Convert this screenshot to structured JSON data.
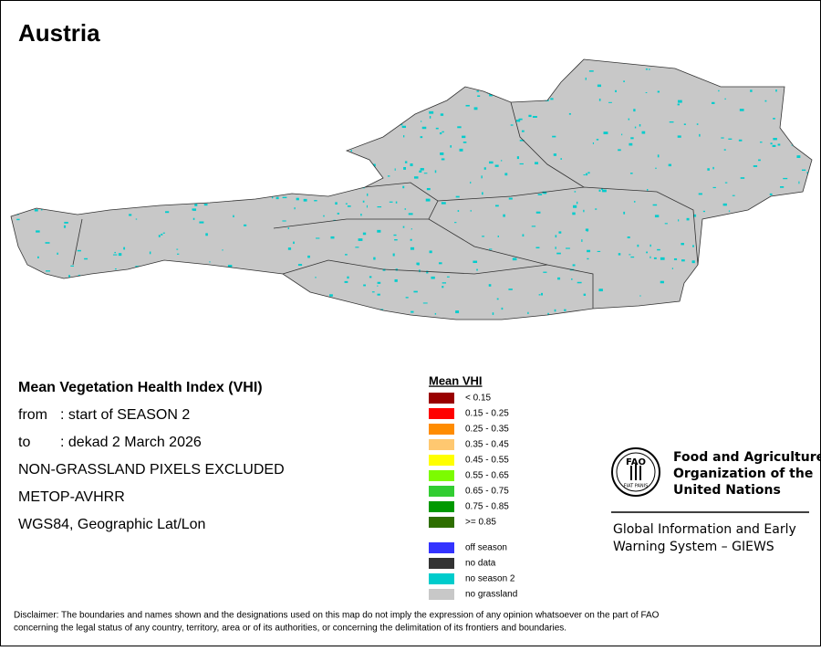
{
  "title": "Austria",
  "info": {
    "heading": "Mean Vegetation Health Index (VHI)",
    "rows": [
      {
        "label": "from",
        "value": ": start of SEASON 2"
      },
      {
        "label": "to",
        "value": ": dekad 2 March 2026"
      }
    ],
    "lines": [
      "NON-GRASSLAND PIXELS EXCLUDED",
      "METOP-AVHRR",
      "WGS84, Geographic Lat/Lon"
    ]
  },
  "legend": {
    "title": "Mean VHI",
    "items": [
      {
        "label": "< 0.15",
        "color": "#990000"
      },
      {
        "label": "0.15 - 0.25",
        "color": "#ff0000"
      },
      {
        "label": "0.25 - 0.35",
        "color": "#ff8c00"
      },
      {
        "label": "0.35 - 0.45",
        "color": "#ffc870"
      },
      {
        "label": "0.45 - 0.55",
        "color": "#ffff00"
      },
      {
        "label": "0.55 - 0.65",
        "color": "#7cfc00"
      },
      {
        "label": "0.65 - 0.75",
        "color": "#32cd32"
      },
      {
        "label": "0.75 - 0.85",
        "color": "#009900"
      },
      {
        "label": ">= 0.85",
        "color": "#2e6e00"
      }
    ],
    "extra": [
      {
        "label": "off season",
        "color": "#3333ff"
      },
      {
        "label": "no data",
        "color": "#333333"
      },
      {
        "label": "no season 2",
        "color": "#00cccc"
      },
      {
        "label": "no grassland",
        "color": "#c8c8c8"
      }
    ]
  },
  "logo": {
    "emblem": "FAO",
    "motto": "FIAT PANIS",
    "org": [
      "Food and Agriculture",
      "Organization of the",
      "United Nations"
    ],
    "system": [
      "Global Information and Early",
      "Warning System – GIEWS"
    ]
  },
  "disclaimer": [
    "Disclaimer: The boundaries and names shown and the designations used on this map do not imply the expression of any opinion whatsoever on the part of FAO",
    "concerning the legal status of any country, territory, area or of its authorities, or concerning the delimitation of its frontiers and boundaries."
  ]
}
